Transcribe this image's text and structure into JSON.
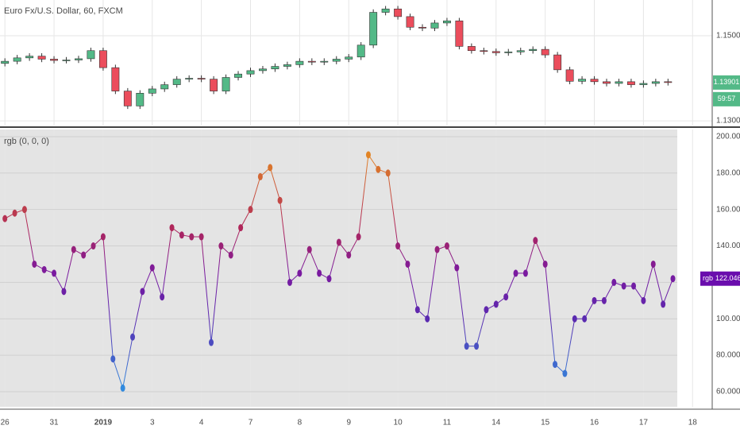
{
  "chart_data": [
    {
      "type": "candlestick",
      "title": "Euro Fx/U.S. Dollar, 60, FXCM",
      "x": [
        0,
        0.25,
        0.5,
        0.75,
        1,
        1.25,
        1.5,
        1.75,
        2,
        2.25,
        2.5,
        2.75,
        3,
        3.25,
        3.5,
        3.75,
        4,
        4.25,
        4.5,
        4.75,
        5,
        5.25,
        5.5,
        5.75,
        6,
        6.25,
        6.5,
        6.75,
        7,
        7.25,
        7.5,
        7.75,
        8,
        8.25,
        8.5,
        8.75,
        9,
        9.25,
        9.5,
        9.75,
        10,
        10.25,
        10.5,
        10.75,
        11,
        11.25,
        11.5,
        11.75,
        12,
        12.25,
        12.5,
        12.75,
        13,
        13.25,
        13.5
      ],
      "open": [
        1.1435,
        1.144,
        1.1448,
        1.1452,
        1.1445,
        1.1442,
        1.1443,
        1.1446,
        1.1465,
        1.1425,
        1.137,
        1.1335,
        1.1365,
        1.1375,
        1.1385,
        1.1398,
        1.14,
        1.1398,
        1.137,
        1.1402,
        1.141,
        1.1418,
        1.1422,
        1.1428,
        1.1432,
        1.144,
        1.1438,
        1.144,
        1.1445,
        1.145,
        1.1478,
        1.1555,
        1.1563,
        1.1545,
        1.152,
        1.1518,
        1.153,
        1.1535,
        1.1475,
        1.1465,
        1.1463,
        1.146,
        1.1462,
        1.1465,
        1.1468,
        1.1455,
        1.142,
        1.1393,
        1.1398,
        1.1392,
        1.1388,
        1.1392,
        1.1385,
        1.1388,
        1.1392
      ],
      "high": [
        1.1447,
        1.1455,
        1.1459,
        1.1459,
        1.1452,
        1.145,
        1.1453,
        1.1472,
        1.1472,
        1.1432,
        1.1377,
        1.1372,
        1.1382,
        1.1392,
        1.1405,
        1.1407,
        1.1407,
        1.1405,
        1.1409,
        1.1417,
        1.1425,
        1.1429,
        1.1435,
        1.1439,
        1.1447,
        1.1447,
        1.1447,
        1.1452,
        1.1457,
        1.1485,
        1.1562,
        1.157,
        1.157,
        1.1552,
        1.1527,
        1.1537,
        1.1542,
        1.1542,
        1.1482,
        1.1472,
        1.147,
        1.1469,
        1.1472,
        1.1475,
        1.1475,
        1.1462,
        1.1427,
        1.1405,
        1.1405,
        1.1399,
        1.1399,
        1.1399,
        1.1395,
        1.1399,
        1.1399
      ],
      "low": [
        1.1428,
        1.1433,
        1.1441,
        1.1438,
        1.1435,
        1.1435,
        1.1436,
        1.1439,
        1.1418,
        1.1363,
        1.1328,
        1.1328,
        1.1358,
        1.1368,
        1.1378,
        1.1391,
        1.1391,
        1.1363,
        1.1363,
        1.1395,
        1.1403,
        1.1411,
        1.1415,
        1.1421,
        1.1425,
        1.1431,
        1.1431,
        1.1433,
        1.1438,
        1.1443,
        1.1471,
        1.1548,
        1.1538,
        1.1513,
        1.1511,
        1.1511,
        1.1523,
        1.1468,
        1.1458,
        1.1456,
        1.1453,
        1.1453,
        1.1455,
        1.1458,
        1.1448,
        1.1413,
        1.1386,
        1.1386,
        1.1385,
        1.1381,
        1.1381,
        1.1378,
        1.1378,
        1.1381,
        1.1383
      ],
      "close": [
        1.144,
        1.1448,
        1.1452,
        1.1445,
        1.1442,
        1.1443,
        1.1446,
        1.1465,
        1.1425,
        1.137,
        1.1335,
        1.1365,
        1.1375,
        1.1385,
        1.1398,
        1.14,
        1.1398,
        1.137,
        1.1402,
        1.141,
        1.1418,
        1.1422,
        1.1428,
        1.1432,
        1.144,
        1.1438,
        1.144,
        1.1445,
        1.145,
        1.1478,
        1.1555,
        1.1563,
        1.1545,
        1.152,
        1.1518,
        1.153,
        1.1535,
        1.1475,
        1.1465,
        1.1463,
        1.146,
        1.1462,
        1.1465,
        1.1468,
        1.1455,
        1.142,
        1.1393,
        1.1398,
        1.1392,
        1.1388,
        1.1392,
        1.1385,
        1.1388,
        1.1392,
        1.139
      ],
      "up_color": "#53b987",
      "down_color": "#eb4d5c",
      "xlim": [
        -0.1,
        14.4
      ],
      "ylim": [
        1.1289,
        1.1584
      ],
      "yticks": [
        {
          "value": 1.13,
          "label": "1.13000"
        },
        {
          "value": 1.15,
          "label": "1.15000"
        }
      ],
      "last_price": 1.13901,
      "countdown": "59:57",
      "grid": true
    },
    {
      "type": "line",
      "title": "rgb (0, 0, 0)",
      "x": [
        0,
        0.2,
        0.4,
        0.6,
        0.8,
        1,
        1.2,
        1.4,
        1.6,
        1.8,
        2,
        2.2,
        2.4,
        2.6,
        2.8,
        3,
        3.2,
        3.4,
        3.6,
        3.8,
        4,
        4.2,
        4.4,
        4.6,
        4.8,
        5,
        5.2,
        5.4,
        5.6,
        5.8,
        6,
        6.2,
        6.4,
        6.6,
        6.8,
        7,
        7.2,
        7.4,
        7.6,
        7.8,
        8,
        8.2,
        8.4,
        8.6,
        8.8,
        9,
        9.2,
        9.4,
        9.6,
        9.8,
        10,
        10.2,
        10.4,
        10.6,
        10.8,
        11,
        11.2,
        11.4,
        11.6,
        11.8,
        12,
        12.2,
        12.4,
        12.6,
        12.8,
        13,
        13.2,
        13.4,
        13.6
      ],
      "values": [
        155,
        158,
        160,
        130,
        127,
        125,
        115,
        138,
        135,
        140,
        145,
        78,
        62,
        90,
        115,
        128,
        112,
        150,
        146,
        145,
        145,
        87,
        140,
        135,
        150,
        160,
        178,
        183,
        165,
        120,
        125,
        138,
        125,
        122,
        142,
        135,
        145,
        190,
        182,
        180,
        140,
        130,
        105,
        100,
        138,
        140,
        128,
        85,
        85,
        105,
        108,
        112,
        125,
        125,
        143,
        130,
        75,
        70,
        100,
        100,
        110,
        110,
        120,
        118,
        118,
        110,
        130,
        108,
        122.0464
      ],
      "color_stops": [
        {
          "value": 60,
          "color": "#2f8fe0"
        },
        {
          "value": 100,
          "color": "#5a2ab0"
        },
        {
          "value": 125,
          "color": "#7a1aa0"
        },
        {
          "value": 150,
          "color": "#b0265a"
        },
        {
          "value": 195,
          "color": "#e8901e"
        }
      ],
      "xlim": [
        -0.1,
        14.4
      ],
      "ylim": [
        51.7,
        203.9
      ],
      "xticks": [
        {
          "value": 0,
          "label": "26"
        },
        {
          "value": 1,
          "label": "31"
        },
        {
          "value": 2,
          "label": "2019",
          "bold": true
        },
        {
          "value": 3,
          "label": "3"
        },
        {
          "value": 4,
          "label": "4"
        },
        {
          "value": 5,
          "label": "7"
        },
        {
          "value": 6,
          "label": "8"
        },
        {
          "value": 7,
          "label": "9"
        },
        {
          "value": 8,
          "label": "10"
        },
        {
          "value": 9,
          "label": "11"
        },
        {
          "value": 10,
          "label": "14"
        },
        {
          "value": 11,
          "label": "15"
        },
        {
          "value": 12,
          "label": "16"
        },
        {
          "value": 13,
          "label": "17"
        },
        {
          "value": 14,
          "label": "18"
        }
      ],
      "yticks": [
        {
          "value": 60,
          "label": "60.0000"
        },
        {
          "value": 80,
          "label": "80.0000"
        },
        {
          "value": 100,
          "label": "100.0000"
        },
        {
          "value": 120,
          "label": "120.0000"
        },
        {
          "value": 140,
          "label": "140.0000"
        },
        {
          "value": 160,
          "label": "160.0000"
        },
        {
          "value": 180,
          "label": "180.0000"
        },
        {
          "value": 200,
          "label": "200.0000"
        }
      ],
      "last_value_name": "rgb",
      "last_value": 122.0464,
      "last_value_color": "#6a0dad",
      "grid": true
    }
  ]
}
